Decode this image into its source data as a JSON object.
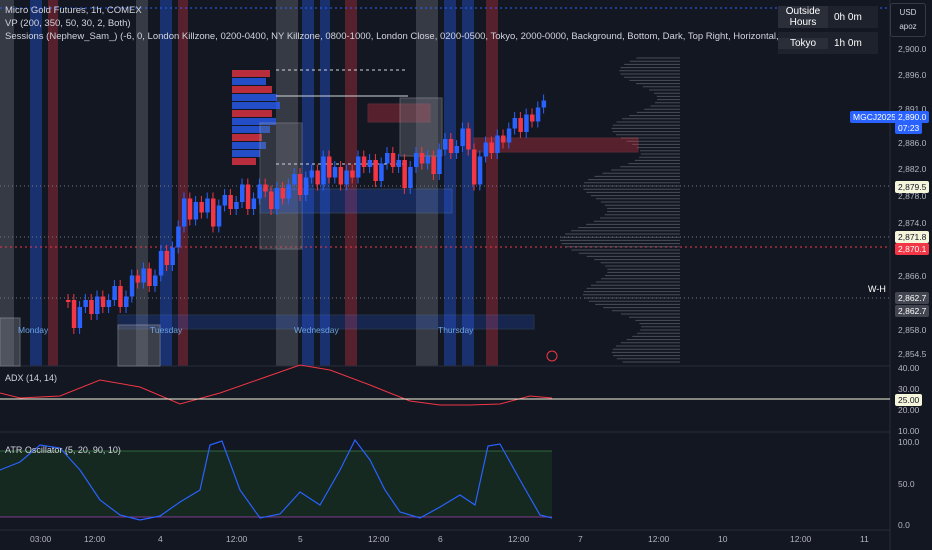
{
  "header": {
    "title_line": "Micro Gold Futures, 1h, COMEX",
    "vp_line": "VP (200, 350, 50, 30, 2, Both)",
    "sessions_line": "Sessions (Nephew_Sam_) (-6, 0, London Killzone, 0200-0400, NY Killzone, 0800-1000, London Close, 0200-0500, Tokyo, 2000-0000, Background, Bottom, Dark, Top Right, Horizontal, Outside Hours, 1)"
  },
  "session_table": [
    {
      "name": "Outside Hours",
      "value": "0h 0m"
    },
    {
      "name": "Tokyo",
      "value": "1h 0m"
    }
  ],
  "currency": {
    "label": "USD",
    "sub": "apoz"
  },
  "price_axis": [
    "2,900.0",
    "2,896.0",
    "2,891.0",
    "2,886.0",
    "2,882.0",
    "2,878.0",
    "2,874.0",
    "2,866.0",
    "2,858.0",
    "2,854.5"
  ],
  "price_tags": {
    "symbol": "MGCJ2025",
    "last": "2,890.0",
    "countdown": "07:23",
    "level_a": "2,879.5",
    "level_b": "2,871.8",
    "level_c": "2,870.1",
    "level_d": "2,862.7",
    "level_e": "2,862.7"
  },
  "day_labels": [
    "Monday",
    "Tuesday",
    "Wednesday",
    "Thursday"
  ],
  "wh_marker": "W-H",
  "adx": {
    "label": "ADX (14, 14)",
    "axis": [
      "40.00",
      "30.00",
      "20.00",
      "10.00"
    ],
    "tag": "25.00"
  },
  "atr": {
    "label": "ATR Oscillator (5, 20, 90, 10)",
    "axis": [
      "100.0",
      "50.0",
      "0.0"
    ]
  },
  "time_axis": [
    "03:00",
    "12:00",
    "4",
    "12:00",
    "5",
    "12:00",
    "6",
    "12:00",
    "7",
    "12:00",
    "10",
    "12:00",
    "11"
  ],
  "colors": {
    "up": "#2962ff",
    "down": "#f23645",
    "bg": "#131722",
    "grid": "#2a2e39",
    "tokyo": "#2962ff",
    "red_session": "#f23645",
    "grey_session": "#787b86"
  }
}
